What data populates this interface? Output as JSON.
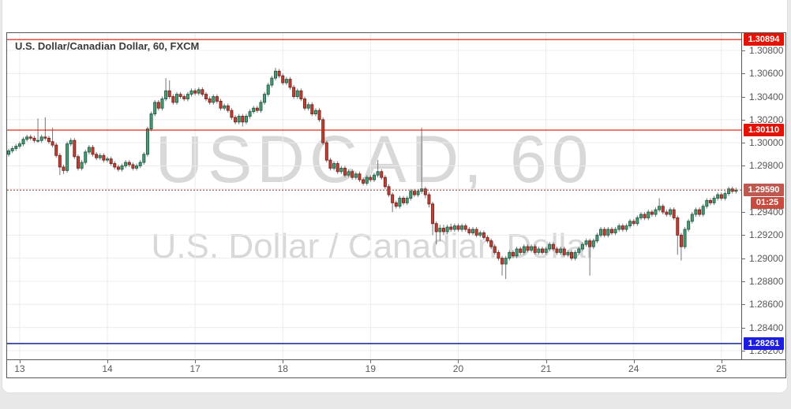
{
  "chart": {
    "title": "U.S. Dollar/Canadian Dollar, 60, FXCM",
    "watermark_line1": "USDCAD, 60",
    "watermark_line2": "U.S. Dollar / Canadian Dollar"
  },
  "colors": {
    "up_fill": "#4f9a77",
    "up_border": "#1e5c41",
    "down_fill": "#b8443a",
    "down_border": "#7c2017",
    "wick": "#73757a",
    "grid": "#ececec",
    "alert_red": "#e01507",
    "last_price_line": "#b2544b",
    "last_price_badge": "#bd5a50",
    "countdown_badge": "#c74b3e",
    "support_line": "#253397",
    "support_badge": "#1d1ddd",
    "axis_text": "#555555",
    "watermark": "#d8d8d8"
  },
  "chart_data": {
    "type": "candlestick",
    "symbol": "USDCAD",
    "interval": "60",
    "exchange": "FXCM",
    "title": "U.S. Dollar/Canadian Dollar, 60, FXCM",
    "ylim": [
      1.28124,
      1.3095
    ],
    "grid": true,
    "price_factor": 1e-05,
    "y_ticks": [
      "1.30800",
      "1.30600",
      "1.30400",
      "1.30200",
      "1.30000",
      "1.29800",
      "1.29400",
      "1.29200",
      "1.29000",
      "1.28800",
      "1.28600",
      "1.28400",
      "1.28200"
    ],
    "hidden_tick_gridlines": [
      "1.29600"
    ],
    "x_ticks": [
      {
        "bar": 3,
        "label": "13"
      },
      {
        "bar": 27,
        "label": "14"
      },
      {
        "bar": 51,
        "label": "17"
      },
      {
        "bar": 75,
        "label": "18"
      },
      {
        "bar": 99,
        "label": "19"
      },
      {
        "bar": 123,
        "label": "20"
      },
      {
        "bar": 147,
        "label": "21"
      },
      {
        "bar": 171,
        "label": "24"
      },
      {
        "bar": 195,
        "label": "25"
      }
    ],
    "levels": [
      {
        "price": 1.30894,
        "label": "1.30894",
        "kind": "alert",
        "line_style": "solid"
      },
      {
        "price": 1.3011,
        "label": "1.30110",
        "kind": "alert",
        "line_style": "solid"
      },
      {
        "price": 1.2959,
        "label": "1.29590",
        "kind": "last",
        "line_style": "dashed",
        "countdown": "01:25"
      },
      {
        "price": 1.28261,
        "label": "1.28261",
        "kind": "support",
        "line_style": "solid"
      }
    ],
    "candles": [
      [
        129900,
        129950,
        129880,
        129930
      ],
      [
        129930,
        129970,
        129910,
        129950
      ],
      [
        129950,
        129990,
        129930,
        129970
      ],
      [
        129970,
        130010,
        129950,
        129990
      ],
      [
        129990,
        130050,
        129970,
        130030
      ],
      [
        130030,
        130070,
        130010,
        130050
      ],
      [
        130050,
        130070,
        130020,
        130040
      ],
      [
        130040,
        130060,
        130000,
        130020
      ],
      [
        130020,
        130210,
        130000,
        130020
      ],
      [
        130020,
        130070,
        130000,
        130050
      ],
      [
        130050,
        130220,
        130020,
        130040
      ],
      [
        130040,
        130060,
        129990,
        130010
      ],
      [
        130010,
        130130,
        129960,
        129980
      ],
      [
        129980,
        130000,
        129870,
        129890
      ],
      [
        129890,
        129910,
        129720,
        129790
      ],
      [
        129790,
        129810,
        129730,
        129760
      ],
      [
        129760,
        130010,
        129740,
        129990
      ],
      [
        129990,
        130040,
        129970,
        130020
      ],
      [
        130020,
        130040,
        129860,
        129880
      ],
      [
        129880,
        129900,
        129760,
        129780
      ],
      [
        129780,
        129850,
        129760,
        129830
      ],
      [
        129830,
        129940,
        129810,
        129920
      ],
      [
        129920,
        129980,
        129900,
        129960
      ],
      [
        129960,
        129980,
        129880,
        129900
      ],
      [
        129900,
        129920,
        129850,
        129870
      ],
      [
        129870,
        129910,
        129850,
        129890
      ],
      [
        129890,
        129910,
        129830,
        129850
      ],
      [
        129850,
        129880,
        129830,
        129860
      ],
      [
        129860,
        129880,
        129800,
        129820
      ],
      [
        129820,
        129840,
        129770,
        129790
      ],
      [
        129790,
        129810,
        129750,
        129770
      ],
      [
        129770,
        129820,
        129750,
        129800
      ],
      [
        129800,
        129850,
        129780,
        129830
      ],
      [
        129830,
        129850,
        129790,
        129810
      ],
      [
        129810,
        129830,
        129760,
        129780
      ],
      [
        129780,
        129820,
        129760,
        129800
      ],
      [
        129800,
        129850,
        129780,
        129830
      ],
      [
        129830,
        129920,
        129810,
        129900
      ],
      [
        129900,
        130140,
        129880,
        130120
      ],
      [
        130120,
        130270,
        130100,
        130250
      ],
      [
        130250,
        130370,
        130230,
        130350
      ],
      [
        130350,
        130370,
        130280,
        130300
      ],
      [
        130300,
        130400,
        130280,
        130380
      ],
      [
        130380,
        130560,
        130360,
        130450
      ],
      [
        130450,
        130540,
        130380,
        130400
      ],
      [
        130400,
        130420,
        130330,
        130350
      ],
      [
        130350,
        130440,
        130330,
        130420
      ],
      [
        130420,
        130440,
        130380,
        130400
      ],
      [
        130400,
        130420,
        130360,
        130380
      ],
      [
        130380,
        130440,
        130360,
        130420
      ],
      [
        130420,
        130470,
        130400,
        130450
      ],
      [
        130450,
        130470,
        130410,
        130430
      ],
      [
        130430,
        130480,
        130410,
        130460
      ],
      [
        130460,
        130480,
        130400,
        130420
      ],
      [
        130420,
        130440,
        130360,
        130380
      ],
      [
        130380,
        130400,
        130330,
        130350
      ],
      [
        130350,
        130420,
        130330,
        130400
      ],
      [
        130400,
        130420,
        130340,
        130360
      ],
      [
        130360,
        130380,
        130280,
        130300
      ],
      [
        130300,
        130340,
        130280,
        130320
      ],
      [
        130320,
        130340,
        130260,
        130280
      ],
      [
        130280,
        130300,
        130200,
        130220
      ],
      [
        130220,
        130240,
        130160,
        130180
      ],
      [
        130180,
        130250,
        130160,
        130230
      ],
      [
        130230,
        130250,
        130140,
        130180
      ],
      [
        130180,
        130250,
        130160,
        130230
      ],
      [
        130230,
        130290,
        130210,
        130270
      ],
      [
        130270,
        130320,
        130250,
        130300
      ],
      [
        130300,
        130320,
        130260,
        130280
      ],
      [
        130280,
        130370,
        130260,
        130350
      ],
      [
        130350,
        130440,
        130330,
        130420
      ],
      [
        130420,
        130520,
        130400,
        130500
      ],
      [
        130500,
        130580,
        130480,
        130560
      ],
      [
        130560,
        130650,
        130540,
        130620
      ],
      [
        130620,
        130640,
        130560,
        130580
      ],
      [
        130580,
        130600,
        130500,
        130520
      ],
      [
        130520,
        130570,
        130500,
        130550
      ],
      [
        130550,
        130570,
        130460,
        130480
      ],
      [
        130480,
        130500,
        130380,
        130400
      ],
      [
        130400,
        130470,
        130380,
        130450
      ],
      [
        130450,
        130470,
        130360,
        130380
      ],
      [
        130380,
        130400,
        130280,
        130300
      ],
      [
        130300,
        130350,
        130280,
        130330
      ],
      [
        130330,
        130350,
        130230,
        130250
      ],
      [
        130250,
        130300,
        130230,
        130280
      ],
      [
        130280,
        130300,
        130180,
        130200
      ],
      [
        130200,
        130220,
        129980,
        130000
      ],
      [
        130000,
        130020,
        129830,
        129850
      ],
      [
        129850,
        129870,
        129760,
        129780
      ],
      [
        129780,
        129840,
        129760,
        129820
      ],
      [
        129820,
        129840,
        129730,
        129750
      ],
      [
        129750,
        129800,
        129730,
        129780
      ],
      [
        129780,
        129800,
        129700,
        129720
      ],
      [
        129720,
        129770,
        129700,
        129750
      ],
      [
        129750,
        129770,
        129680,
        129700
      ],
      [
        129700,
        129750,
        129680,
        129730
      ],
      [
        129730,
        129750,
        129660,
        129680
      ],
      [
        129680,
        129700,
        129630,
        129650
      ],
      [
        129650,
        129720,
        129630,
        129700
      ],
      [
        129700,
        129720,
        129660,
        129680
      ],
      [
        129680,
        129740,
        129660,
        129720
      ],
      [
        129720,
        129850,
        129700,
        129750
      ],
      [
        129750,
        129770,
        129680,
        129700
      ],
      [
        129700,
        129720,
        129600,
        129620
      ],
      [
        129620,
        129640,
        129530,
        129550
      ],
      [
        129550,
        129570,
        129400,
        129480
      ],
      [
        129480,
        129500,
        129430,
        129450
      ],
      [
        129450,
        129540,
        129430,
        129520
      ],
      [
        129520,
        129540,
        129460,
        129480
      ],
      [
        129480,
        129540,
        129460,
        129520
      ],
      [
        129520,
        129600,
        129500,
        129580
      ],
      [
        129580,
        129600,
        129530,
        129550
      ],
      [
        129550,
        129600,
        129530,
        129580
      ],
      [
        129580,
        130130,
        129560,
        129600
      ],
      [
        129600,
        129620,
        129520,
        129550
      ],
      [
        129550,
        129570,
        129440,
        129470
      ],
      [
        129470,
        129490,
        129200,
        129300
      ],
      [
        129300,
        129320,
        129120,
        129230
      ],
      [
        129230,
        129290,
        129150,
        129260
      ],
      [
        129260,
        129290,
        129200,
        129230
      ],
      [
        129230,
        129290,
        129210,
        129270
      ],
      [
        129270,
        129300,
        129230,
        129250
      ],
      [
        129250,
        129300,
        129230,
        129280
      ],
      [
        129280,
        129300,
        129230,
        129250
      ],
      [
        129250,
        129300,
        129230,
        129280
      ],
      [
        129280,
        129300,
        129230,
        129250
      ],
      [
        129250,
        129270,
        129200,
        129220
      ],
      [
        129220,
        129270,
        129200,
        129250
      ],
      [
        129250,
        129270,
        129180,
        129200
      ],
      [
        129200,
        129240,
        129180,
        129220
      ],
      [
        129220,
        129240,
        129160,
        129180
      ],
      [
        129180,
        129200,
        129130,
        129150
      ],
      [
        129150,
        129170,
        129080,
        129100
      ],
      [
        129100,
        129120,
        129030,
        129050
      ],
      [
        129050,
        129070,
        128980,
        129000
      ],
      [
        129000,
        129020,
        128850,
        128950
      ],
      [
        128950,
        129020,
        128820,
        129000
      ],
      [
        129000,
        129070,
        128980,
        129050
      ],
      [
        129050,
        129070,
        129000,
        129020
      ],
      [
        129020,
        129100,
        129000,
        129080
      ],
      [
        129080,
        129100,
        129030,
        129050
      ],
      [
        129050,
        129120,
        129030,
        129100
      ],
      [
        129100,
        129120,
        129050,
        129070
      ],
      [
        129070,
        129120,
        129050,
        129100
      ],
      [
        129100,
        129120,
        129030,
        129050
      ],
      [
        129050,
        129100,
        129030,
        129080
      ],
      [
        129080,
        129100,
        129030,
        129050
      ],
      [
        129050,
        129100,
        129030,
        129080
      ],
      [
        129080,
        129140,
        129060,
        129120
      ],
      [
        129120,
        129140,
        129060,
        129080
      ],
      [
        129080,
        129100,
        129030,
        129050
      ],
      [
        129050,
        129100,
        129030,
        129080
      ],
      [
        129080,
        129100,
        129010,
        129030
      ],
      [
        129030,
        129070,
        129010,
        129050
      ],
      [
        129050,
        129070,
        128980,
        129000
      ],
      [
        129000,
        129070,
        128980,
        129050
      ],
      [
        129050,
        129100,
        129030,
        129080
      ],
      [
        129080,
        129140,
        129060,
        129120
      ],
      [
        129120,
        129170,
        129100,
        129150
      ],
      [
        129150,
        129170,
        128850,
        129100
      ],
      [
        129100,
        129170,
        129080,
        129150
      ],
      [
        129150,
        129220,
        129130,
        129200
      ],
      [
        129200,
        129270,
        129180,
        129250
      ],
      [
        129250,
        129270,
        129180,
        129200
      ],
      [
        129200,
        129270,
        129180,
        129250
      ],
      [
        129250,
        129270,
        129200,
        129220
      ],
      [
        129220,
        129270,
        129200,
        129250
      ],
      [
        129250,
        129300,
        129230,
        129280
      ],
      [
        129280,
        129300,
        129230,
        129250
      ],
      [
        129250,
        129300,
        129230,
        129280
      ],
      [
        129280,
        129340,
        129260,
        129320
      ],
      [
        129320,
        129340,
        129280,
        129300
      ],
      [
        129300,
        129370,
        129280,
        129350
      ],
      [
        129350,
        129400,
        129330,
        129380
      ],
      [
        129380,
        129400,
        129330,
        129350
      ],
      [
        129350,
        129420,
        129330,
        129400
      ],
      [
        129400,
        129420,
        129360,
        129380
      ],
      [
        129380,
        129440,
        129360,
        129420
      ],
      [
        129420,
        129520,
        129400,
        129450
      ],
      [
        129450,
        129470,
        129380,
        129400
      ],
      [
        129400,
        129420,
        129360,
        129380
      ],
      [
        129380,
        129440,
        129360,
        129420
      ],
      [
        129420,
        129440,
        129330,
        129350
      ],
      [
        129350,
        129370,
        129030,
        129200
      ],
      [
        129200,
        129220,
        128980,
        129100
      ],
      [
        129100,
        129270,
        129080,
        129250
      ],
      [
        129250,
        129340,
        129230,
        129320
      ],
      [
        129320,
        129400,
        129300,
        129380
      ],
      [
        129380,
        129440,
        129360,
        129420
      ],
      [
        129420,
        129440,
        129360,
        129380
      ],
      [
        129380,
        129470,
        129360,
        129450
      ],
      [
        129450,
        129520,
        129430,
        129500
      ],
      [
        129500,
        129520,
        129460,
        129480
      ],
      [
        129480,
        129540,
        129460,
        129520
      ],
      [
        129520,
        129570,
        129500,
        129550
      ],
      [
        129550,
        129570,
        129500,
        129520
      ],
      [
        129520,
        129580,
        129500,
        129560
      ],
      [
        129560,
        129620,
        129540,
        129600
      ],
      [
        129600,
        129620,
        129560,
        129580
      ],
      [
        129580,
        129610,
        129560,
        129590
      ]
    ]
  }
}
